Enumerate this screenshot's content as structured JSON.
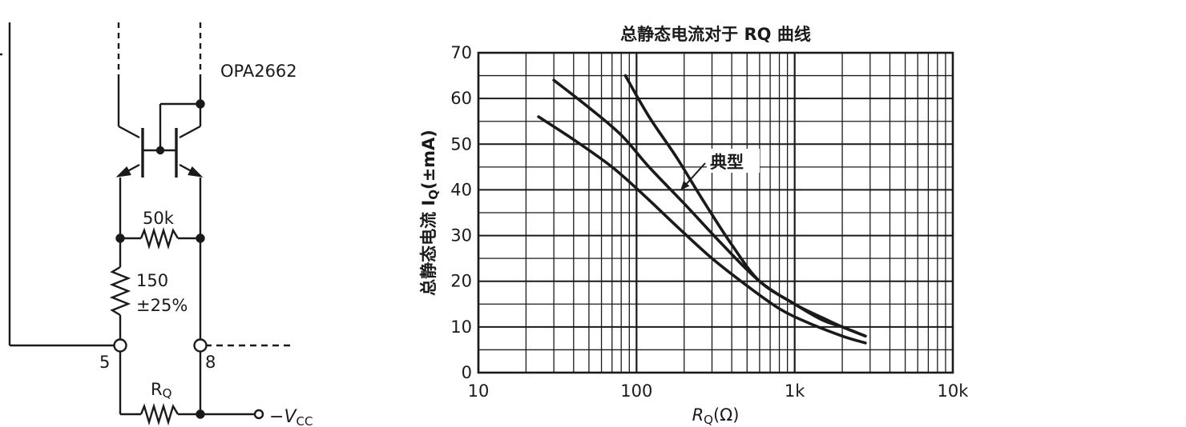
{
  "circuit": {
    "chip_label": "OPA2662",
    "resistor_top_value": "50k",
    "resistor_mid_value": "150",
    "resistor_mid_tolerance": "±25%",
    "pin_left": "5",
    "pin_right": "8",
    "resistor_bottom_label": "R",
    "resistor_bottom_sub": "Q",
    "supply_sign": "−",
    "supply_main": "V",
    "supply_sub": "CC"
  },
  "chart_data": {
    "type": "line",
    "title": "总静态电流对于 RQ 曲线",
    "xlabel_main": "R",
    "xlabel_sub": "Q",
    "xlabel_unit": "(Ω)",
    "ylabel_main": "总静态电流 I",
    "ylabel_sub": "Q",
    "ylabel_unit": "(±mA)",
    "x_scale": "log",
    "xlim": [
      10,
      10000
    ],
    "ylim": [
      0,
      70
    ],
    "x_ticks": [
      10,
      100,
      1000,
      10000
    ],
    "x_tick_labels": [
      "10",
      "100",
      "1k",
      "10k"
    ],
    "y_ticks": [
      0,
      10,
      20,
      30,
      40,
      50,
      60,
      70
    ],
    "y_tick_labels": [
      "0",
      "10",
      "20",
      "30",
      "40",
      "50",
      "60",
      "70"
    ],
    "grid": true,
    "annotation": "典型",
    "annotation_target": {
      "x": 190,
      "y": 40
    },
    "series": [
      {
        "x": [
          85,
          120,
          180,
          260,
          400,
          600,
          1000,
          1500,
          2000,
          2800
        ],
        "y": [
          65,
          56,
          47,
          38,
          28,
          20,
          15,
          11.5,
          10,
          8
        ]
      },
      {
        "x": [
          30,
          50,
          80,
          120,
          200,
          350,
          600,
          1000,
          1500,
          2000,
          2800
        ],
        "y": [
          64,
          58,
          52,
          45,
          37,
          28,
          20,
          15,
          12,
          10,
          8
        ]
      },
      {
        "x": [
          24,
          40,
          70,
          110,
          180,
          300,
          500,
          800,
          1200,
          2000,
          2800
        ],
        "y": [
          56,
          51,
          45,
          39,
          32,
          25,
          19,
          14,
          11,
          8,
          6.5
        ]
      }
    ]
  }
}
